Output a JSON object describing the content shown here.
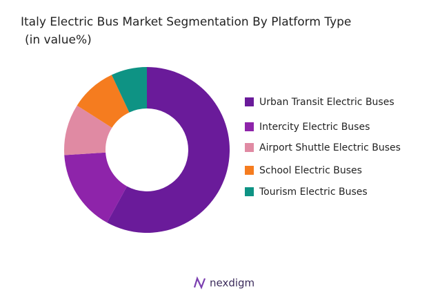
{
  "chart_data": {
    "type": "donut",
    "title": "Italy Electric Bus Market Segmentation By Platform Type",
    "subtitle": "(in value%)",
    "categories": [
      "Urban Transit Electric Buses",
      "Intercity Electric Buses",
      "Airport Shuttle Electric Buses",
      "School Electric Buses",
      "Tourism Electric Buses"
    ],
    "values": [
      58,
      16,
      10,
      9,
      7
    ],
    "colors": [
      "#6a1b9a",
      "#8e24aa",
      "#e08aa3",
      "#f57c1f",
      "#0e9384"
    ]
  },
  "brand": "nexdigm"
}
